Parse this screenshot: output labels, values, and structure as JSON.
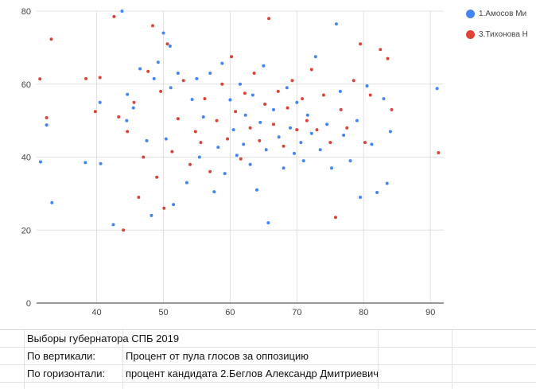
{
  "chart_data": {
    "type": "scatter",
    "title": "",
    "xlabel": "",
    "ylabel": "",
    "xlim": [
      31,
      92
    ],
    "ylim": [
      0,
      80
    ],
    "x_ticks": [
      "40",
      "50",
      "60",
      "70",
      "80",
      "90"
    ],
    "y_ticks": [
      "0",
      "20",
      "40",
      "60",
      "80"
    ],
    "grid": true,
    "legend_position": "top-right",
    "series": [
      {
        "name": "1.Амосов Ми",
        "color": "#4285f4",
        "points": [
          [
            31.6,
            38.7
          ],
          [
            32.5,
            48.8
          ],
          [
            33.3,
            27.5
          ],
          [
            38.3,
            38.5
          ],
          [
            40.6,
            38.2
          ],
          [
            40.5,
            55.0
          ],
          [
            42.5,
            21.5
          ],
          [
            43.8,
            80.0
          ],
          [
            44.5,
            50.0
          ],
          [
            44.6,
            57.2
          ],
          [
            45.5,
            53.5
          ],
          [
            46.5,
            64.2
          ],
          [
            47.5,
            44.5
          ],
          [
            48.2,
            24.0
          ],
          [
            48.6,
            61.5
          ],
          [
            49.2,
            66.0
          ],
          [
            50.0,
            74.0
          ],
          [
            50.4,
            45.0
          ],
          [
            51.0,
            70.4
          ],
          [
            51.1,
            59.0
          ],
          [
            51.5,
            27.0
          ],
          [
            52.2,
            63.0
          ],
          [
            53.5,
            33.0
          ],
          [
            54.3,
            55.8
          ],
          [
            55.0,
            61.5
          ],
          [
            55.4,
            40.0
          ],
          [
            56.0,
            51.0
          ],
          [
            57.0,
            63.0
          ],
          [
            57.6,
            30.5
          ],
          [
            58.2,
            42.7
          ],
          [
            58.8,
            65.7
          ],
          [
            59.2,
            35.5
          ],
          [
            60.0,
            55.7
          ],
          [
            60.5,
            47.5
          ],
          [
            61.0,
            40.5
          ],
          [
            61.5,
            60.0
          ],
          [
            62.0,
            43.5
          ],
          [
            62.3,
            51.5
          ],
          [
            63.0,
            38.0
          ],
          [
            63.4,
            57.0
          ],
          [
            64.0,
            31.0
          ],
          [
            64.5,
            49.5
          ],
          [
            65.0,
            65.0
          ],
          [
            65.4,
            42.0
          ],
          [
            65.7,
            22.0
          ],
          [
            66.5,
            53.0
          ],
          [
            67.3,
            45.5
          ],
          [
            68.0,
            37.0
          ],
          [
            68.5,
            59.0
          ],
          [
            69.0,
            48.0
          ],
          [
            69.6,
            41.0
          ],
          [
            70.0,
            55.0
          ],
          [
            70.6,
            44.0
          ],
          [
            71.0,
            39.0
          ],
          [
            71.6,
            51.5
          ],
          [
            72.2,
            46.5
          ],
          [
            72.8,
            67.5
          ],
          [
            73.5,
            42.0
          ],
          [
            74.5,
            49.0
          ],
          [
            75.2,
            37.0
          ],
          [
            75.9,
            76.5
          ],
          [
            76.5,
            58.0
          ],
          [
            77.0,
            46.0
          ],
          [
            78.0,
            39.0
          ],
          [
            79.0,
            50.0
          ],
          [
            79.5,
            29.0
          ],
          [
            80.5,
            59.5
          ],
          [
            81.2,
            43.5
          ],
          [
            82.0,
            30.3
          ],
          [
            83.0,
            56.0
          ],
          [
            83.5,
            32.8
          ],
          [
            84.0,
            47.0
          ],
          [
            91.0,
            58.8
          ]
        ]
      },
      {
        "name": "3.Тихонова Н",
        "color": "#db4437",
        "points": [
          [
            31.5,
            61.4
          ],
          [
            32.5,
            50.8
          ],
          [
            33.2,
            72.3
          ],
          [
            38.4,
            61.5
          ],
          [
            39.8,
            52.5
          ],
          [
            40.5,
            61.8
          ],
          [
            42.6,
            78.5
          ],
          [
            43.3,
            51.0
          ],
          [
            44.0,
            20.0
          ],
          [
            44.6,
            47.0
          ],
          [
            45.6,
            55.0
          ],
          [
            46.3,
            29.0
          ],
          [
            47.0,
            40.0
          ],
          [
            47.7,
            63.5
          ],
          [
            48.4,
            76.0
          ],
          [
            49.0,
            34.5
          ],
          [
            49.6,
            58.0
          ],
          [
            50.1,
            26.0
          ],
          [
            50.6,
            71.0
          ],
          [
            51.3,
            41.5
          ],
          [
            52.2,
            50.5
          ],
          [
            53.0,
            61.0
          ],
          [
            54.0,
            38.0
          ],
          [
            54.8,
            47.0
          ],
          [
            55.6,
            44.0
          ],
          [
            56.2,
            56.0
          ],
          [
            57.0,
            36.0
          ],
          [
            58.0,
            50.0
          ],
          [
            58.8,
            60.0
          ],
          [
            59.6,
            45.0
          ],
          [
            60.2,
            67.5
          ],
          [
            60.8,
            52.5
          ],
          [
            61.6,
            39.5
          ],
          [
            62.2,
            57.5
          ],
          [
            63.0,
            48.0
          ],
          [
            63.6,
            63.0
          ],
          [
            64.4,
            44.5
          ],
          [
            65.2,
            54.5
          ],
          [
            65.8,
            78.0
          ],
          [
            66.5,
            49.0
          ],
          [
            67.2,
            58.0
          ],
          [
            68.0,
            43.0
          ],
          [
            68.6,
            53.5
          ],
          [
            69.3,
            61.0
          ],
          [
            70.0,
            47.5
          ],
          [
            70.8,
            56.0
          ],
          [
            71.5,
            50.0
          ],
          [
            72.2,
            64.0
          ],
          [
            73.0,
            47.5
          ],
          [
            74.0,
            57.0
          ],
          [
            75.0,
            44.0
          ],
          [
            75.8,
            23.5
          ],
          [
            76.6,
            53.0
          ],
          [
            77.5,
            48.0
          ],
          [
            78.5,
            61.0
          ],
          [
            79.5,
            71.0
          ],
          [
            80.2,
            44.0
          ],
          [
            81.0,
            57.0
          ],
          [
            82.5,
            69.5
          ],
          [
            83.6,
            67.0
          ],
          [
            84.2,
            53.0
          ],
          [
            91.2,
            41.2
          ]
        ]
      }
    ]
  },
  "sheet": {
    "title": "Выборы губернатора СПБ 2019",
    "vertical_label": "По вертикали:",
    "vertical_value": "Процент от пула глосов за оппозицию",
    "horizontal_label": "По горизонтали:",
    "horizontal_value": "процент кандидата 2.Беглов Александр Дмитриевич"
  }
}
